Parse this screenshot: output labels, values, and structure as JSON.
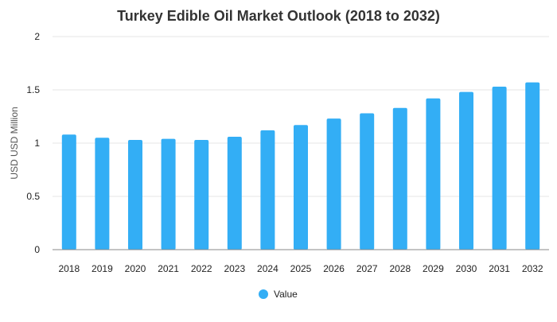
{
  "chart_data": {
    "type": "bar",
    "title": "Turkey Edible Oil Market Outlook (2018 to 2032)",
    "xlabel": "",
    "ylabel": "USD USD Million",
    "categories": [
      "2018",
      "2019",
      "2020",
      "2021",
      "2022",
      "2023",
      "2024",
      "2025",
      "2026",
      "2027",
      "2028",
      "2029",
      "2030",
      "2031",
      "2032"
    ],
    "series": [
      {
        "name": "Value",
        "color": "#33aef5",
        "values": [
          1.08,
          1.05,
          1.03,
          1.04,
          1.03,
          1.06,
          1.12,
          1.17,
          1.23,
          1.28,
          1.33,
          1.42,
          1.48,
          1.53,
          1.57
        ]
      }
    ],
    "ylim": [
      0,
      2
    ],
    "yticks": [
      0,
      0.5,
      1,
      1.5,
      2
    ],
    "grid": true,
    "legend": "bottom-center"
  }
}
